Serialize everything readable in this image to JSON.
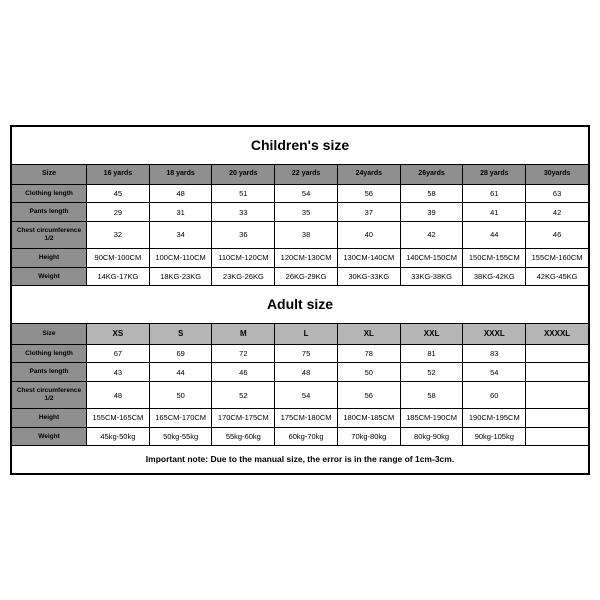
{
  "children": {
    "title": "Children's size",
    "headers": [
      "Size",
      "16 yards",
      "18 yards",
      "20 yards",
      "22 yards",
      "24yards",
      "26yards",
      "28 yards",
      "30yards"
    ],
    "rows": [
      {
        "label": "Clothing length",
        "cells": [
          "45",
          "48",
          "51",
          "54",
          "56",
          "58",
          "61",
          "63"
        ]
      },
      {
        "label": "Pants length",
        "cells": [
          "29",
          "31",
          "33",
          "35",
          "37",
          "39",
          "41",
          "42"
        ]
      },
      {
        "label": "Chest circumference 1/2",
        "cells": [
          "32",
          "34",
          "36",
          "38",
          "40",
          "42",
          "44",
          "46"
        ]
      },
      {
        "label": "Height",
        "cells": [
          "90CM-100CM",
          "100CM-110CM",
          "110CM-120CM",
          "120CM-130CM",
          "130CM-140CM",
          "140CM-150CM",
          "150CM-155CM",
          "155CM-160CM"
        ]
      },
      {
        "label": "Weight",
        "cells": [
          "14KG-17KG",
          "18KG-23KG",
          "23KG-26KG",
          "26KG-29KG",
          "30KG-33KG",
          "33KG-38KG",
          "38KG-42KG",
          "42KG-45KG"
        ]
      }
    ]
  },
  "adult": {
    "title": "Adult size",
    "headers": [
      "Size",
      "XS",
      "S",
      "M",
      "L",
      "XL",
      "XXL",
      "XXXL",
      "XXXXL"
    ],
    "rows": [
      {
        "label": "Clothing length",
        "cells": [
          "67",
          "69",
          "72",
          "75",
          "78",
          "81",
          "83",
          ""
        ]
      },
      {
        "label": "Pants length",
        "cells": [
          "43",
          "44",
          "46",
          "48",
          "50",
          "52",
          "54",
          ""
        ]
      },
      {
        "label": "Chest circumference 1/2",
        "cells": [
          "48",
          "50",
          "52",
          "54",
          "56",
          "58",
          "60",
          ""
        ]
      },
      {
        "label": "Height",
        "cells": [
          "155CM-165CM",
          "165CM-170CM",
          "170CM-175CM",
          "175CM-180CM",
          "180CM-185CM",
          "185CM-190CM",
          "190CM-195CM",
          ""
        ]
      },
      {
        "label": "Weight",
        "cells": [
          "45kg-50kg",
          "50kg-55kg",
          "55kg-60kg",
          "60kg-70kg",
          "70kg-80kg",
          "80kg-90kg",
          "90kg-105kg",
          ""
        ]
      }
    ]
  },
  "note": "Important note: Due to the manual size, the error is in the range of 1cm-3cm.",
  "style": {
    "border_color": "#000000",
    "header_gray": "#8f8f8f",
    "adult_header_gray": "#b5b5b5",
    "background": "#ffffff",
    "title_fontsize": 14,
    "cell_fontsize": 7.5,
    "label_fontsize": 6.5,
    "note_fontsize": 8.5
  }
}
